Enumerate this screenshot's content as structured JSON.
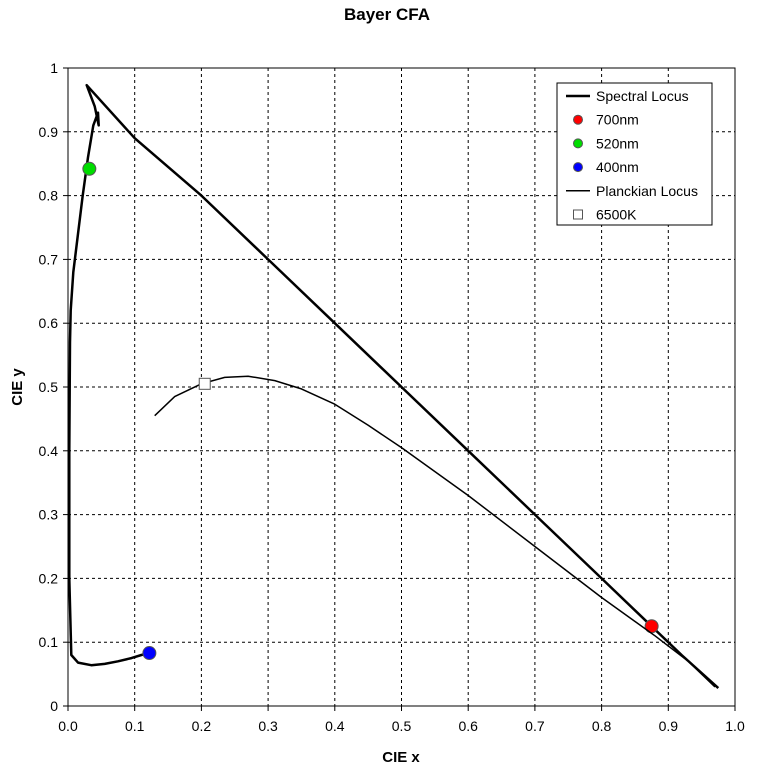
{
  "chart_data": {
    "type": "line",
    "title": "Bayer CFA",
    "xlabel": "CIE x",
    "ylabel": "CIE y",
    "xlim": [
      0,
      1
    ],
    "ylim": [
      0,
      1
    ],
    "xticks": [
      "0.0",
      "0.1",
      "0.2",
      "0.3",
      "0.4",
      "0.5",
      "0.6",
      "0.7",
      "0.8",
      "0.9",
      "1.0"
    ],
    "yticks": [
      "0",
      "0.1",
      "0.2",
      "0.3",
      "0.4",
      "0.5",
      "0.6",
      "0.7",
      "0.8",
      "0.9",
      "1"
    ],
    "grid": true,
    "legend_position": "top-right",
    "series": [
      {
        "name": "Spectral Locus",
        "kind": "line",
        "color": "#000000",
        "x": [
          0.122,
          0.11,
          0.095,
          0.075,
          0.055,
          0.035,
          0.015,
          0.005,
          0.002,
          0.002,
          0.003,
          0.004,
          0.008,
          0.015,
          0.022,
          0.03,
          0.038,
          0.045,
          0.046,
          0.04,
          0.028,
          0.1,
          0.2,
          0.3,
          0.4,
          0.5,
          0.6,
          0.7,
          0.8,
          0.875,
          0.92,
          0.975
        ],
        "y": [
          0.083,
          0.08,
          0.075,
          0.07,
          0.066,
          0.064,
          0.068,
          0.08,
          0.2,
          0.4,
          0.57,
          0.62,
          0.68,
          0.74,
          0.8,
          0.86,
          0.91,
          0.93,
          0.91,
          0.94,
          0.973,
          0.89,
          0.8,
          0.7,
          0.6,
          0.5,
          0.4,
          0.3,
          0.2,
          0.125,
          0.08,
          0.028
        ]
      },
      {
        "name": "700nm",
        "kind": "marker",
        "color": "#ff0000",
        "x": [
          0.875
        ],
        "y": [
          0.125
        ]
      },
      {
        "name": "520nm",
        "kind": "marker",
        "color": "#00dd00",
        "x": [
          0.032
        ],
        "y": [
          0.842
        ]
      },
      {
        "name": "400nm",
        "kind": "marker",
        "color": "#0000ff",
        "x": [
          0.122
        ],
        "y": [
          0.083
        ]
      },
      {
        "name": "Planckian Locus",
        "kind": "line",
        "color": "#000000",
        "x": [
          0.13,
          0.16,
          0.2,
          0.235,
          0.27,
          0.31,
          0.35,
          0.4,
          0.45,
          0.5,
          0.6,
          0.7,
          0.8,
          0.88,
          0.93,
          0.97
        ],
        "y": [
          0.455,
          0.485,
          0.505,
          0.515,
          0.517,
          0.51,
          0.497,
          0.473,
          0.44,
          0.405,
          0.33,
          0.25,
          0.17,
          0.11,
          0.07,
          0.03
        ]
      },
      {
        "name": "6500K",
        "kind": "square-marker",
        "color": "#000000",
        "x": [
          0.205
        ],
        "y": [
          0.505
        ]
      }
    ]
  }
}
